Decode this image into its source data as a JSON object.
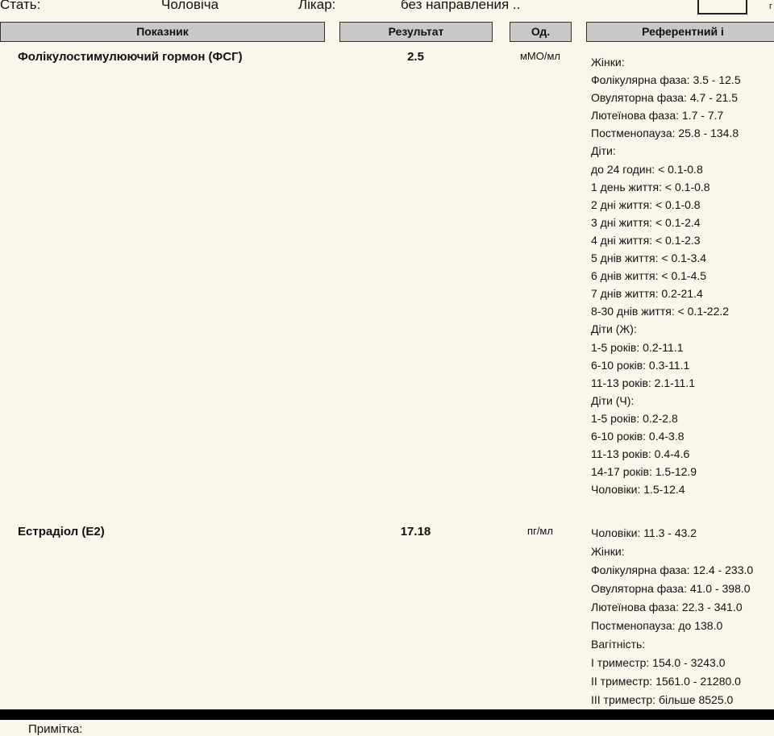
{
  "patient": {
    "sex_label": "Стать:",
    "sex_value": "Чоловіча",
    "doctor_label": "Лікар:",
    "doctor_value": "без направления ..",
    "cut_text": "г"
  },
  "table": {
    "headers": [
      "Показник",
      "Результат",
      "Од.",
      "Референтний і"
    ],
    "rows": [
      {
        "name": "Фолікулостимулюючий гормон (ФСГ)",
        "result": "2.5",
        "unit": "мМО/мл",
        "reference": [
          "Жінки:",
          "Фолікулярна фаза: 3.5 - 12.5",
          "Овуляторна фаза: 4.7 - 21.5",
          "Лютеїнова фаза: 1.7 - 7.7",
          "Постменопауза: 25.8 - 134.8",
          "Діти:",
          "до 24 годин: < 0.1-0.8",
          "1 день життя: < 0.1-0.8",
          "2 дні життя: < 0.1-0.8",
          "3 дні життя: < 0.1-2.4",
          "4 дні життя: < 0.1-2.3",
          "5 днів життя: < 0.1-3.4",
          "6 днів життя: < 0.1-4.5",
          "7 днів життя: 0.2-21.4",
          "8-30 днів життя: < 0.1-22.2",
          "Діти (Ж):",
          "1-5 років: 0.2-11.1",
          "6-10 років: 0.3-11.1",
          "11-13 років: 2.1-11.1",
          "Діти (Ч):",
          "1-5 років: 0.2-2.8",
          "6-10 років: 0.4-3.8",
          "11-13 років: 0.4-4.6",
          "14-17 років: 1.5-12.9",
          "Чоловіки: 1.5-12.4"
        ]
      },
      {
        "name": "Естрадіол (Е2)",
        "result": "17.18",
        "unit": "пг/мл",
        "reference": [
          "Чоловіки: 11.3 - 43.2",
          "Жінки:",
          "Фолікулярна фаза: 12.4 - 233.0",
          "Овуляторна фаза: 41.0 - 398.0",
          "Лютеїнова фаза: 22.3 - 341.0",
          "Постменопауза: до 138.0",
          "Вагітність:",
          "I триместр: 154.0 - 3243.0",
          "II триместр: 1561.0 - 21280.0",
          "III триместр: більше 8525.0"
        ]
      }
    ]
  },
  "note_label": "Примітка:"
}
